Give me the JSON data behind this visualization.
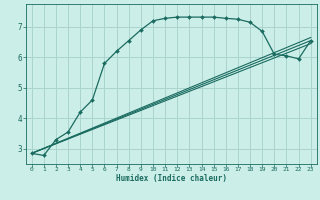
{
  "xlabel": "Humidex (Indice chaleur)",
  "bg_color": "#cceee8",
  "grid_color": "#aad4ce",
  "line_color": "#1a6b60",
  "xlim": [
    -0.5,
    23.5
  ],
  "ylim": [
    2.5,
    7.75
  ],
  "xticks": [
    0,
    1,
    2,
    3,
    4,
    5,
    6,
    7,
    8,
    9,
    10,
    11,
    12,
    13,
    14,
    15,
    16,
    17,
    18,
    19,
    20,
    21,
    22,
    23
  ],
  "yticks": [
    3,
    4,
    5,
    6,
    7
  ],
  "line1_x": [
    0,
    1,
    2,
    3,
    4,
    5,
    6,
    7,
    8,
    9,
    10,
    11,
    12,
    13,
    14,
    15,
    16,
    17,
    18,
    19,
    20,
    21,
    22,
    23
  ],
  "line1_y": [
    2.85,
    2.78,
    3.3,
    3.55,
    4.2,
    4.6,
    5.8,
    6.2,
    6.55,
    6.9,
    7.2,
    7.28,
    7.32,
    7.32,
    7.32,
    7.32,
    7.28,
    7.25,
    7.15,
    6.85,
    6.1,
    6.05,
    5.95,
    6.55
  ],
  "line2_x": [
    0,
    23
  ],
  "line2_y": [
    2.85,
    6.55
  ],
  "line3_x": [
    0,
    23
  ],
  "line3_y": [
    2.85,
    6.65
  ],
  "line4_x": [
    0,
    23
  ],
  "line4_y": [
    2.85,
    6.45
  ]
}
